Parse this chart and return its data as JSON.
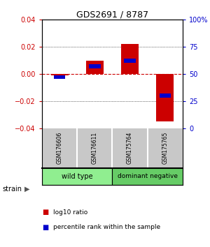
{
  "title": "GDS2691 / 8787",
  "samples": [
    "GSM176606",
    "GSM176611",
    "GSM175764",
    "GSM175765"
  ],
  "log10_ratio": [
    -0.001,
    0.01,
    0.022,
    -0.035
  ],
  "percentile_rank": [
    47,
    57,
    62,
    30
  ],
  "ylim": [
    -0.04,
    0.04
  ],
  "yticks": [
    -0.04,
    -0.02,
    0,
    0.02,
    0.04
  ],
  "right_ytick_labels": [
    "0",
    "25",
    "50",
    "75",
    "100%"
  ],
  "bar_color_red": "#CC0000",
  "bar_color_blue": "#0000CC",
  "bar_width": 0.5,
  "background_color": "#FFFFFF",
  "plot_bg": "#FFFFFF",
  "label_bg": "#C8C8C8",
  "group_bg_wt": "#90EE90",
  "group_bg_dn": "#66CC66",
  "left_axis_color": "#CC0000",
  "right_axis_color": "#0000CC",
  "wt_label": "wild type",
  "dn_label": "dominant negative",
  "strain_label": "strain",
  "legend_red": "log10 ratio",
  "legend_blue": "percentile rank within the sample"
}
